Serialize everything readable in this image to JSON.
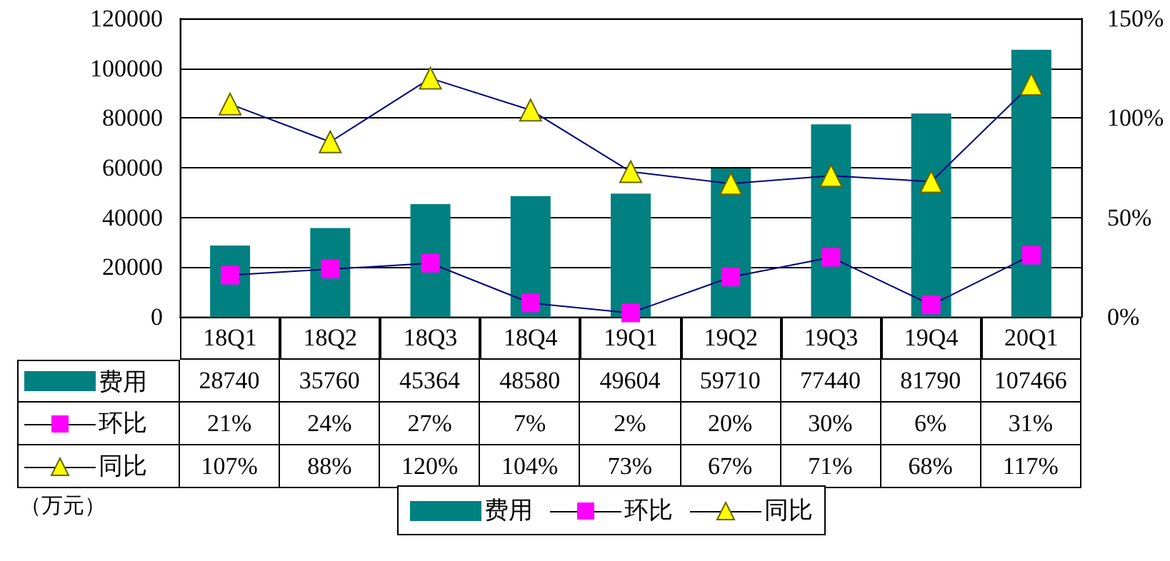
{
  "chart_data": {
    "type": "bar",
    "annotations": [
      "（万元）"
    ],
    "categories": [
      "18Q1",
      "18Q2",
      "18Q3",
      "18Q4",
      "19Q1",
      "19Q2",
      "19Q3",
      "19Q4",
      "20Q1"
    ],
    "series": [
      {
        "name": "费用",
        "color": "#008080",
        "values": [
          28740,
          35760,
          45364,
          48580,
          49604,
          59710,
          77440,
          81790,
          107466
        ],
        "value_labels": [
          "28740",
          "35760",
          "45364",
          "48580",
          "49604",
          "59710",
          "77440",
          "81790",
          "107466"
        ]
      },
      {
        "name": "环比",
        "type": "line",
        "axis": "y2",
        "marker": "square",
        "color": "#ff00ff",
        "values": [
          21,
          24,
          27,
          7,
          2,
          20,
          30,
          6,
          31
        ],
        "value_labels": [
          "21%",
          "24%",
          "27%",
          "7%",
          "2%",
          "20%",
          "30%",
          "6%",
          "31%"
        ]
      },
      {
        "name": "同比",
        "type": "line",
        "axis": "y2",
        "marker": "triangle",
        "color": "#ffff00",
        "values": [
          107,
          88,
          120,
          104,
          73,
          67,
          71,
          68,
          117
        ],
        "value_labels": [
          "107%",
          "88%",
          "120%",
          "104%",
          "73%",
          "67%",
          "71%",
          "68%",
          "117%"
        ]
      }
    ],
    "ylim": [
      0,
      120000
    ],
    "yticks": [
      0,
      20000,
      40000,
      60000,
      80000,
      100000,
      120000
    ],
    "y2lim": [
      0,
      150
    ],
    "y2ticks": [
      {
        "value": 0,
        "label": "0%"
      },
      {
        "value": 50,
        "label": "50%"
      },
      {
        "value": 100,
        "label": "100%"
      },
      {
        "value": 150,
        "label": "150%"
      }
    ],
    "grid": "y",
    "legend": "bottom"
  }
}
